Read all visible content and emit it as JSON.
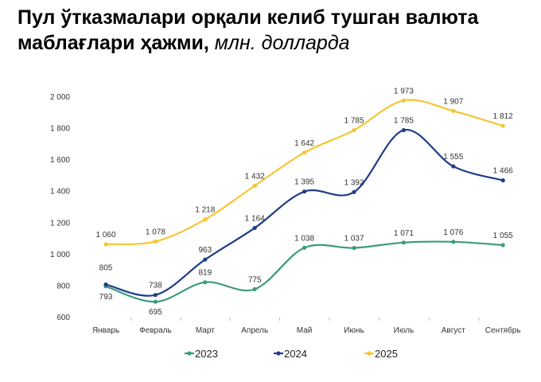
{
  "title": {
    "bold": "Пул ўтказмалари орқали келиб тушган валюта маблағлари ҳажми,",
    "italic": "млн. долларда"
  },
  "chart_data": {
    "type": "line",
    "title": "Пул ўтказмалари орқали келиб тушган валюта маблағлари ҳажми, млн. долларда",
    "categories": [
      "Январь",
      "Февраль",
      "Март",
      "Апрель",
      "Май",
      "Июнь",
      "Июль",
      "Август",
      "Сентябрь"
    ],
    "ylim": [
      600,
      2000
    ],
    "yticks": [
      600,
      800,
      1000,
      1200,
      1400,
      1600,
      1800,
      2000
    ],
    "ytick_labels": [
      "600",
      "800",
      "1 000",
      "1 200",
      "1 400",
      "1 600",
      "1 800",
      "2 000"
    ],
    "grid": false,
    "legend": "bottom",
    "series": [
      {
        "name": "2023",
        "color": "#3d9b7c",
        "values": [
          793,
          695,
          819,
          775,
          1038,
          1037,
          1071,
          1076,
          1055
        ],
        "labels": [
          "793",
          "695",
          "819",
          "775",
          "1 038",
          "1 037",
          "1 071",
          "1 076",
          "1 055"
        ]
      },
      {
        "name": "2024",
        "color": "#1f3c88",
        "values": [
          805,
          738,
          963,
          1164,
          1395,
          1392,
          1785,
          1555,
          1466
        ],
        "labels": [
          "805",
          "738",
          "963",
          "1 164",
          "1 395",
          "1 392",
          "1 785",
          "1 555",
          "1 466"
        ]
      },
      {
        "name": "2025",
        "color": "#f6c533",
        "values": [
          1060,
          1078,
          1218,
          1432,
          1642,
          1785,
          1973,
          1907,
          1812
        ],
        "labels": [
          "1 060",
          "1 078",
          "1 218",
          "1 432",
          "1 642",
          "1 785",
          "1 973",
          "1 907",
          "1 812"
        ]
      }
    ]
  }
}
